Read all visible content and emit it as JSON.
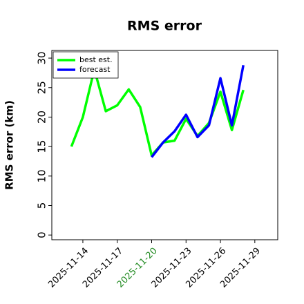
{
  "chart_data": {
    "type": "line",
    "title": "RMS error",
    "y_label": "RMS error (km)",
    "x": [
      "2025-11-13",
      "2025-11-14",
      "2025-11-15",
      "2025-11-16",
      "2025-11-17",
      "2025-11-18",
      "2025-11-19",
      "2025-11-20",
      "2025-11-21",
      "2025-11-22",
      "2025-11-23",
      "2025-11-24",
      "2025-11-25",
      "2025-11-26",
      "2025-11-27",
      "2025-11-28"
    ],
    "series": [
      {
        "name": "best est.",
        "color": "#00ff00",
        "values": [
          15,
          20,
          28.1,
          21,
          22,
          24.7,
          21.7,
          13.5,
          15.7,
          16,
          19.7,
          16.8,
          19,
          24.3,
          17.8,
          24.6
        ]
      },
      {
        "name": "forecast",
        "color": "#0000ff",
        "values": [
          null,
          null,
          null,
          null,
          null,
          null,
          null,
          13.2,
          15.7,
          17.6,
          20.4,
          16.6,
          18.6,
          26.6,
          18.6,
          28.8
        ]
      }
    ],
    "xlim": [
      "2025-11-11T07:00",
      "2025-12-01T00:00"
    ],
    "xticks": [
      "2025-11-14",
      "2025-11-17",
      "2025-11-20",
      "2025-11-23",
      "2025-11-26",
      "2025-11-29"
    ],
    "xtick_colors": [
      "#000000",
      "#000000",
      "#228b22",
      "#000000",
      "#000000",
      "#000000"
    ],
    "ylim": [
      -0.8,
      31.3
    ],
    "yticks": [
      0,
      5,
      10,
      15,
      20,
      25,
      30
    ],
    "legend": "upper left"
  }
}
